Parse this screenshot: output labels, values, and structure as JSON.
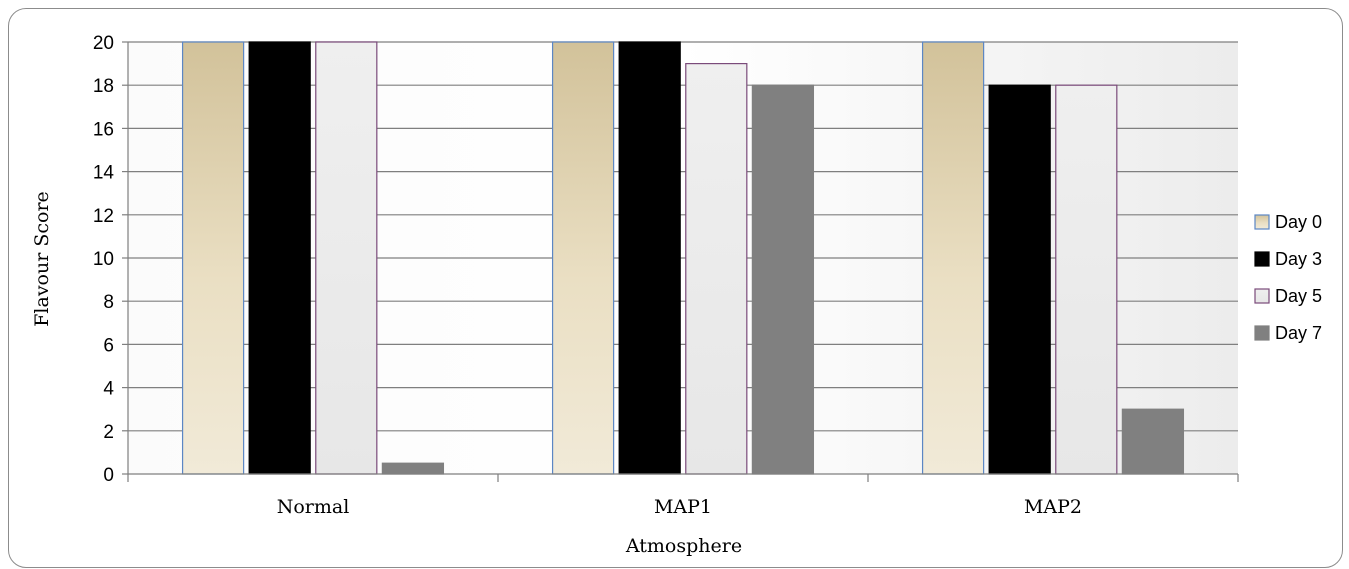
{
  "chart_data": {
    "type": "bar",
    "xlabel": "Atmosphere",
    "ylabel": "Flavour Score",
    "categories": [
      "Normal",
      "MAP1",
      "MAP2"
    ],
    "ylim": [
      0,
      20
    ],
    "yticks": [
      0,
      2,
      4,
      6,
      8,
      10,
      12,
      14,
      16,
      18,
      20
    ],
    "grid": true,
    "legend_position": "right",
    "series": [
      {
        "name": "Day 0",
        "values": [
          20,
          20,
          20
        ],
        "color": "#e6dcc0",
        "stroke": "#5b86c4"
      },
      {
        "name": "Day 3",
        "values": [
          20,
          20,
          18
        ],
        "color": "#000000",
        "stroke": "#000000"
      },
      {
        "name": "Day 5",
        "values": [
          20,
          19,
          18
        ],
        "color": "#ececec",
        "stroke": "#7a4a7a"
      },
      {
        "name": "Day 7",
        "values": [
          0.5,
          18,
          3
        ],
        "color": "#808080",
        "stroke": "#808080"
      }
    ]
  }
}
